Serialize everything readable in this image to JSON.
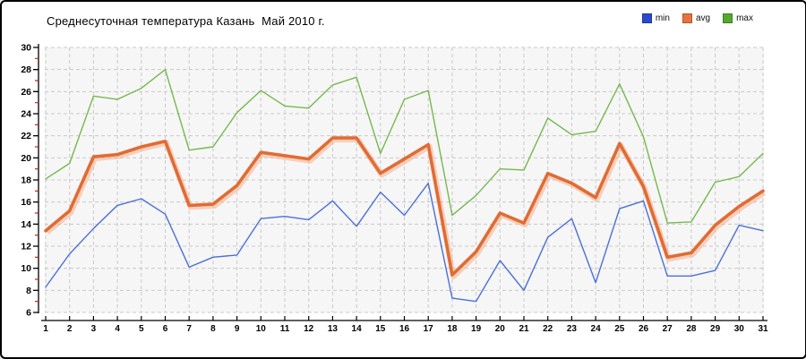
{
  "page": {
    "title": "Среднесуточная температура Казань  Май 2010 г."
  },
  "legend": {
    "position": "top-right",
    "items": [
      {
        "label": "min",
        "color": "#2a49cc"
      },
      {
        "label": "avg",
        "color": "#e8743c"
      },
      {
        "label": "max",
        "color": "#55a82e"
      }
    ]
  },
  "colors": {
    "page_bg": "#ffffff",
    "page_border": "#000000",
    "plot_bg": "#f6f6f6",
    "grid": "#c9c9c9",
    "axis": "#000000",
    "minor_tick": "#cc2200",
    "tick_label": "#000000",
    "avg_halo": "#f4b08c"
  },
  "chart_data": {
    "type": "line",
    "title": "Среднесуточная температура Казань  Май 2010 г.",
    "xlabel": "",
    "ylabel": "",
    "x": [
      1,
      2,
      3,
      4,
      5,
      6,
      7,
      8,
      9,
      10,
      11,
      12,
      13,
      14,
      15,
      16,
      17,
      18,
      19,
      20,
      21,
      22,
      23,
      24,
      25,
      26,
      27,
      28,
      29,
      30,
      31
    ],
    "ylim": [
      6,
      30
    ],
    "ytick_step": 2,
    "grid": true,
    "grid_style": "dashed",
    "legend_position": "top-right",
    "series": [
      {
        "name": "min",
        "color": "#4a6fd8",
        "width": 1.4,
        "values": [
          8.3,
          11.3,
          13.6,
          15.7,
          16.3,
          14.9,
          10.1,
          11.0,
          11.2,
          14.5,
          14.7,
          14.4,
          16.1,
          13.8,
          16.9,
          14.8,
          17.7,
          7.3,
          7.0,
          10.7,
          8.0,
          12.8,
          14.5,
          8.7,
          15.4,
          16.1,
          9.3,
          9.3,
          9.8,
          13.9,
          13.4
        ]
      },
      {
        "name": "avg",
        "color": "#e06c34",
        "width": 3.6,
        "values": [
          13.4,
          15.2,
          20.1,
          20.3,
          21.0,
          21.5,
          15.7,
          15.8,
          17.5,
          20.5,
          20.2,
          19.9,
          21.8,
          21.8,
          18.6,
          19.9,
          21.2,
          9.4,
          11.5,
          15.0,
          14.1,
          18.6,
          17.7,
          16.4,
          21.3,
          17.4,
          11.0,
          11.4,
          13.9,
          15.6,
          17.0
        ]
      },
      {
        "name": "max",
        "color": "#76b84e",
        "width": 1.4,
        "values": [
          18.1,
          19.5,
          25.6,
          25.3,
          26.3,
          28.0,
          20.7,
          21.0,
          24.1,
          26.1,
          24.7,
          24.5,
          26.6,
          27.3,
          20.4,
          25.3,
          26.1,
          14.8,
          16.6,
          19.0,
          18.9,
          23.6,
          22.1,
          22.4,
          26.7,
          21.9,
          14.1,
          14.2,
          17.8,
          18.3,
          20.4
        ]
      }
    ]
  }
}
